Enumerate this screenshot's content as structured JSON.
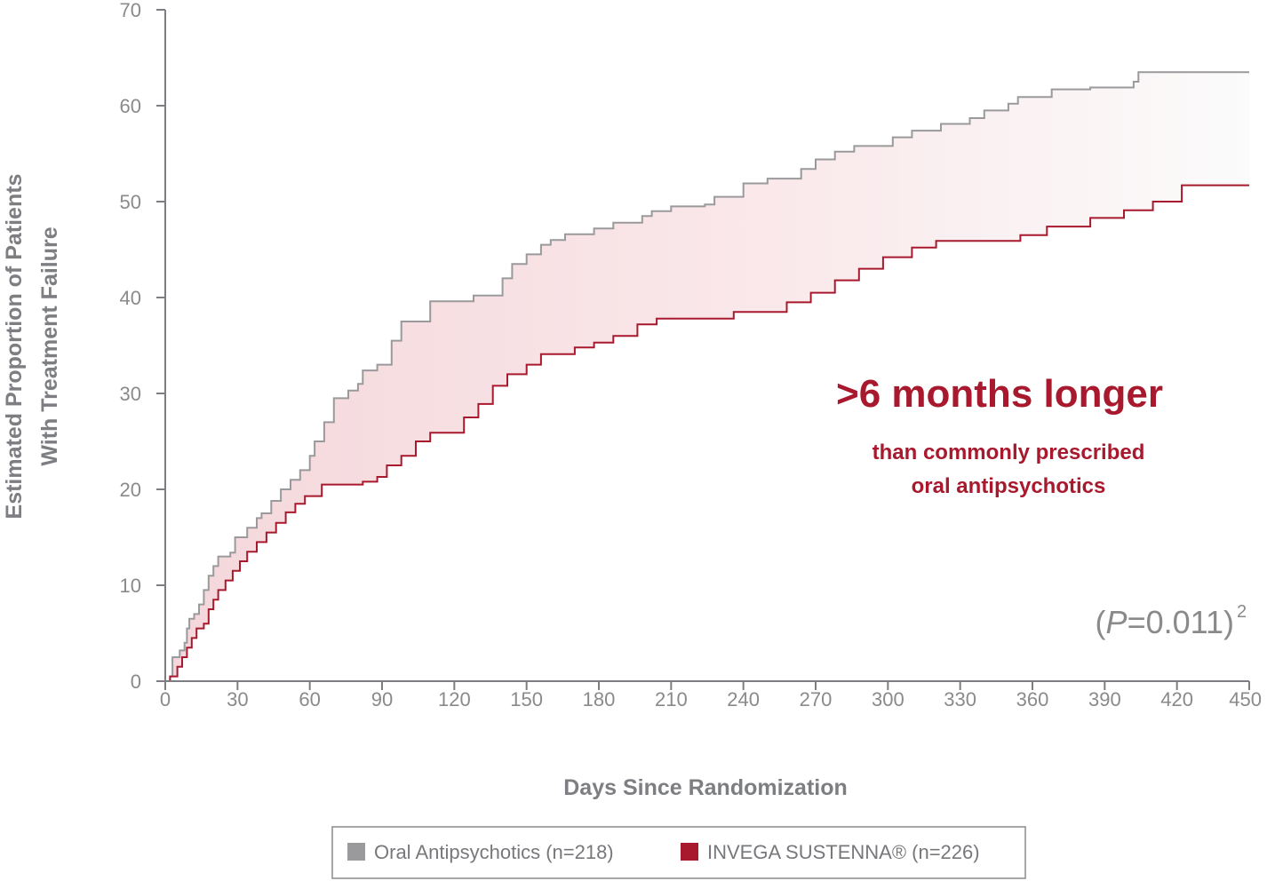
{
  "chart_data": {
    "type": "line",
    "subtype": "kaplan-meier-step",
    "xlabel": "Days Since Randomization",
    "ylabel_lines": [
      "Estimated Proportion of Patients",
      "With Treatment Failure"
    ],
    "xlim": [
      0,
      450
    ],
    "ylim": [
      0,
      70
    ],
    "xticks": [
      0,
      30,
      60,
      90,
      120,
      150,
      180,
      210,
      240,
      270,
      300,
      330,
      360,
      390,
      420,
      450
    ],
    "xtick_labels": [
      "0",
      "30",
      "60",
      "90",
      "120",
      "150",
      "180",
      "210",
      "240",
      "270",
      "300",
      "330",
      "360",
      "390",
      "420",
      "450"
    ],
    "yticks": [
      0,
      10,
      20,
      30,
      40,
      50,
      60,
      70
    ],
    "ytick_labels": [
      "0",
      "10",
      "20",
      "30",
      "40",
      "50",
      "60",
      "70"
    ],
    "grid": false,
    "legend_position": "bottom-center",
    "shaded_region_between_series": true,
    "annotation": {
      "headline": ">6 months longer",
      "subline_1": "than commonly prescribed",
      "subline_2": "oral antipsychotics",
      "pvalue_open": "(",
      "pvalue_p": "P",
      "pvalue_rest": "=0.011)",
      "pvalue_sup": "2"
    },
    "series": [
      {
        "name": "Oral Antipsychotics (n=218)",
        "color": "#9a9a9c",
        "points": [
          [
            0,
            0
          ],
          [
            2,
            0.5
          ],
          [
            3,
            2.5
          ],
          [
            6,
            3.2
          ],
          [
            8,
            4
          ],
          [
            9,
            5.5
          ],
          [
            10,
            6.5
          ],
          [
            12,
            7
          ],
          [
            14,
            8
          ],
          [
            16,
            9.5
          ],
          [
            18,
            11
          ],
          [
            20,
            12
          ],
          [
            22,
            13
          ],
          [
            27,
            13.4
          ],
          [
            29,
            15
          ],
          [
            34,
            16
          ],
          [
            38,
            17
          ],
          [
            40,
            17.5
          ],
          [
            44,
            18.8
          ],
          [
            48,
            20
          ],
          [
            52,
            21
          ],
          [
            56,
            22
          ],
          [
            60,
            23.5
          ],
          [
            62,
            25
          ],
          [
            66,
            27
          ],
          [
            70,
            29.5
          ],
          [
            76,
            30.3
          ],
          [
            80,
            31
          ],
          [
            82,
            32.4
          ],
          [
            88,
            33
          ],
          [
            94,
            35.5
          ],
          [
            98,
            37.5
          ],
          [
            110,
            39.6
          ],
          [
            128,
            40.2
          ],
          [
            140,
            42
          ],
          [
            144,
            43.5
          ],
          [
            150,
            44.5
          ],
          [
            156,
            45.5
          ],
          [
            160,
            46
          ],
          [
            166,
            46.6
          ],
          [
            178,
            47.2
          ],
          [
            186,
            47.8
          ],
          [
            198,
            48.5
          ],
          [
            202,
            49
          ],
          [
            210,
            49.5
          ],
          [
            224,
            49.7
          ],
          [
            228,
            50.5
          ],
          [
            240,
            51.9
          ],
          [
            250,
            52.4
          ],
          [
            264,
            53.4
          ],
          [
            270,
            54.4
          ],
          [
            278,
            55.2
          ],
          [
            286,
            55.8
          ],
          [
            302,
            56.7
          ],
          [
            310,
            57.4
          ],
          [
            322,
            58.1
          ],
          [
            334,
            58.7
          ],
          [
            340,
            59.5
          ],
          [
            350,
            60.2
          ],
          [
            354,
            60.9
          ],
          [
            368,
            61.7
          ],
          [
            384,
            61.9
          ],
          [
            402,
            62.5
          ],
          [
            404,
            63.5
          ],
          [
            450,
            63.5
          ]
        ]
      },
      {
        "name": "INVEGA SUSTENNA® (n=226)",
        "color": "#a8192e",
        "points": [
          [
            0,
            0
          ],
          [
            2,
            0.5
          ],
          [
            5,
            1.5
          ],
          [
            7,
            2.5
          ],
          [
            9,
            3.5
          ],
          [
            11,
            4.5
          ],
          [
            13,
            5.5
          ],
          [
            16,
            6
          ],
          [
            18,
            7.5
          ],
          [
            20,
            8.5
          ],
          [
            22,
            9.5
          ],
          [
            25,
            10.5
          ],
          [
            28,
            11.5
          ],
          [
            31,
            12.5
          ],
          [
            34,
            13.5
          ],
          [
            38,
            14.5
          ],
          [
            42,
            15.5
          ],
          [
            46,
            16.5
          ],
          [
            50,
            17.6
          ],
          [
            54,
            18.5
          ],
          [
            58,
            19.3
          ],
          [
            65,
            20.5
          ],
          [
            82,
            20.8
          ],
          [
            88,
            21.3
          ],
          [
            92,
            22.5
          ],
          [
            98,
            23.5
          ],
          [
            104,
            25
          ],
          [
            110,
            25.9
          ],
          [
            124,
            27.5
          ],
          [
            130,
            28.9
          ],
          [
            136,
            30.8
          ],
          [
            142,
            32
          ],
          [
            150,
            33
          ],
          [
            156,
            34.1
          ],
          [
            170,
            34.8
          ],
          [
            178,
            35.3
          ],
          [
            186,
            36
          ],
          [
            196,
            37.2
          ],
          [
            204,
            37.8
          ],
          [
            236,
            38.5
          ],
          [
            258,
            39.5
          ],
          [
            268,
            40.5
          ],
          [
            278,
            41.8
          ],
          [
            288,
            43
          ],
          [
            298,
            44.2
          ],
          [
            310,
            45.2
          ],
          [
            320,
            45.9
          ],
          [
            355,
            46.5
          ],
          [
            366,
            47.4
          ],
          [
            384,
            48.3
          ],
          [
            398,
            49.1
          ],
          [
            410,
            50
          ],
          [
            422,
            51.7
          ],
          [
            450,
            51.7
          ]
        ]
      }
    ]
  }
}
